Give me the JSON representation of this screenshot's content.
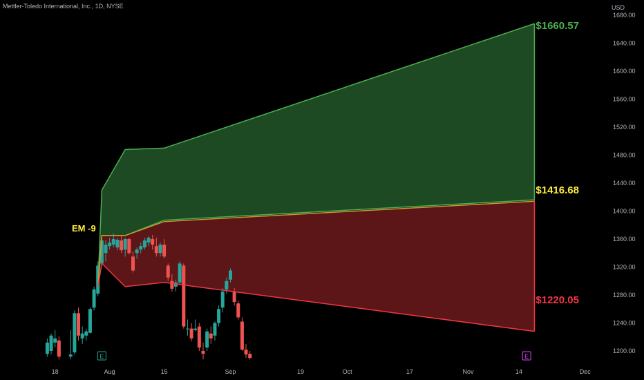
{
  "header": {
    "title": "Mettler-Toledo International, Inc., 1D, NYSE"
  },
  "axis": {
    "currency": "USD"
  },
  "chart_data": {
    "type": "candlestick",
    "title": "Mettler-Toledo International, Inc., 1D, NYSE",
    "ylabel": "USD",
    "ylim": [
      1188,
      1686
    ],
    "y_ticks": [
      "1200.00",
      "1240.00",
      "1280.00",
      "1320.00",
      "1360.00",
      "1400.00",
      "1440.00",
      "1480.00",
      "1520.00",
      "1560.00",
      "1600.00",
      "1640.00",
      "1680.00"
    ],
    "x_ticks": [
      {
        "label": "18",
        "day": -13
      },
      {
        "label": "Aug",
        "day": 1
      },
      {
        "label": "15",
        "day": 15
      },
      {
        "label": "Sep",
        "day": 32
      },
      {
        "label": "19",
        "day": 50
      },
      {
        "label": "Oct",
        "day": 62
      },
      {
        "label": "17",
        "day": 78
      },
      {
        "label": "Nov",
        "day": 93
      },
      {
        "label": "14",
        "day": 106
      },
      {
        "label": "Dec",
        "day": 123
      }
    ],
    "upper_band": [
      [
        -2,
        1292
      ],
      [
        -1,
        1430
      ],
      [
        5,
        1488
      ],
      [
        15,
        1490
      ],
      [
        110,
        1668
      ]
    ],
    "mid_upper": [
      [
        -2,
        1292
      ],
      [
        -1,
        1365
      ],
      [
        5,
        1365
      ],
      [
        15,
        1387
      ],
      [
        110,
        1416
      ]
    ],
    "mid_lower": [
      [
        -2,
        1292
      ],
      [
        -1,
        1365
      ],
      [
        5,
        1365
      ],
      [
        15,
        1385
      ],
      [
        110,
        1414
      ]
    ],
    "lower_band": [
      [
        -2,
        1292
      ],
      [
        -1,
        1325
      ],
      [
        5,
        1292
      ],
      [
        15,
        1298
      ],
      [
        110,
        1228
      ]
    ],
    "band_colors": {
      "upper_fill": "#1e4a23",
      "upper_line": "#4caf50",
      "lower_fill": "#5c1618",
      "lower_line": "#f23645",
      "mid_line": "#f5c842"
    },
    "candle_colors": {
      "up": "#26a69a",
      "down": "#ef5350"
    },
    "candles": [
      {
        "d": -15,
        "o": 1196,
        "h": 1218,
        "l": 1192,
        "c": 1212
      },
      {
        "d": -14,
        "o": 1200,
        "h": 1225,
        "l": 1195,
        "c": 1222
      },
      {
        "d": -13,
        "o": 1212,
        "h": 1230,
        "l": 1205,
        "c": 1218
      },
      {
        "d": -12,
        "o": 1215,
        "h": 1221,
        "l": 1188,
        "c": 1192
      },
      {
        "d": -9,
        "o": 1192,
        "h": 1230,
        "l": 1188,
        "c": 1195
      },
      {
        "d": -8,
        "o": 1198,
        "h": 1258,
        "l": 1195,
        "c": 1254
      },
      {
        "d": -7,
        "o": 1254,
        "h": 1262,
        "l": 1215,
        "c": 1222
      },
      {
        "d": -6,
        "o": 1218,
        "h": 1235,
        "l": 1210,
        "c": 1225
      },
      {
        "d": -5,
        "o": 1222,
        "h": 1232,
        "l": 1215,
        "c": 1228
      },
      {
        "d": -4,
        "o": 1226,
        "h": 1262,
        "l": 1225,
        "c": 1260
      },
      {
        "d": -3,
        "o": 1262,
        "h": 1292,
        "l": 1258,
        "c": 1288
      },
      {
        "d": -2,
        "o": 1282,
        "h": 1328,
        "l": 1278,
        "c": 1322
      },
      {
        "d": -1,
        "o": 1325,
        "h": 1362,
        "l": 1322,
        "c": 1358
      },
      {
        "d": 0,
        "o": 1340,
        "h": 1358,
        "l": 1328,
        "c": 1352
      },
      {
        "d": 1,
        "o": 1350,
        "h": 1362,
        "l": 1345,
        "c": 1355
      },
      {
        "d": 2,
        "o": 1352,
        "h": 1368,
        "l": 1348,
        "c": 1360
      },
      {
        "d": 3,
        "o": 1348,
        "h": 1362,
        "l": 1344,
        "c": 1359
      },
      {
        "d": 4,
        "o": 1358,
        "h": 1365,
        "l": 1340,
        "c": 1344
      },
      {
        "d": 5,
        "o": 1345,
        "h": 1362,
        "l": 1335,
        "c": 1360
      },
      {
        "d": 6,
        "o": 1360,
        "h": 1362,
        "l": 1338,
        "c": 1340
      },
      {
        "d": 7,
        "o": 1335,
        "h": 1342,
        "l": 1312,
        "c": 1315
      },
      {
        "d": 8,
        "o": 1340,
        "h": 1348,
        "l": 1332,
        "c": 1345
      },
      {
        "d": 9,
        "o": 1345,
        "h": 1355,
        "l": 1340,
        "c": 1350
      },
      {
        "d": 10,
        "o": 1348,
        "h": 1362,
        "l": 1345,
        "c": 1358
      },
      {
        "d": 11,
        "o": 1355,
        "h": 1364,
        "l": 1350,
        "c": 1362
      },
      {
        "d": 12,
        "o": 1360,
        "h": 1366,
        "l": 1345,
        "c": 1352
      },
      {
        "d": 13,
        "o": 1350,
        "h": 1362,
        "l": 1335,
        "c": 1340
      },
      {
        "d": 14,
        "o": 1340,
        "h": 1355,
        "l": 1335,
        "c": 1352
      },
      {
        "d": 15,
        "o": 1352,
        "h": 1360,
        "l": 1332,
        "c": 1335
      },
      {
        "d": 16,
        "o": 1322,
        "h": 1325,
        "l": 1300,
        "c": 1305
      },
      {
        "d": 17,
        "o": 1300,
        "h": 1310,
        "l": 1285,
        "c": 1289
      },
      {
        "d": 18,
        "o": 1292,
        "h": 1302,
        "l": 1285,
        "c": 1298
      },
      {
        "d": 19,
        "o": 1298,
        "h": 1328,
        "l": 1295,
        "c": 1325
      },
      {
        "d": 20,
        "o": 1322,
        "h": 1325,
        "l": 1232,
        "c": 1235
      },
      {
        "d": 21,
        "o": 1232,
        "h": 1245,
        "l": 1222,
        "c": 1232
      },
      {
        "d": 22,
        "o": 1232,
        "h": 1240,
        "l": 1214,
        "c": 1218
      },
      {
        "d": 23,
        "o": 1230,
        "h": 1245,
        "l": 1228,
        "c": 1232
      },
      {
        "d": 24,
        "o": 1235,
        "h": 1240,
        "l": 1200,
        "c": 1205
      },
      {
        "d": 25,
        "o": 1200,
        "h": 1212,
        "l": 1188,
        "c": 1196
      },
      {
        "d": 26,
        "o": 1205,
        "h": 1232,
        "l": 1200,
        "c": 1228
      },
      {
        "d": 27,
        "o": 1225,
        "h": 1235,
        "l": 1210,
        "c": 1218
      },
      {
        "d": 28,
        "o": 1222,
        "h": 1242,
        "l": 1215,
        "c": 1240
      },
      {
        "d": 29,
        "o": 1240,
        "h": 1265,
        "l": 1235,
        "c": 1260
      },
      {
        "d": 30,
        "o": 1262,
        "h": 1290,
        "l": 1255,
        "c": 1285
      },
      {
        "d": 31,
        "o": 1288,
        "h": 1305,
        "l": 1282,
        "c": 1300
      },
      {
        "d": 32,
        "o": 1302,
        "h": 1318,
        "l": 1298,
        "c": 1315
      },
      {
        "d": 33,
        "o": 1285,
        "h": 1290,
        "l": 1265,
        "c": 1270
      },
      {
        "d": 34,
        "o": 1268,
        "h": 1272,
        "l": 1245,
        "c": 1248
      },
      {
        "d": 35,
        "o": 1242,
        "h": 1248,
        "l": 1200,
        "c": 1202
      },
      {
        "d": 36,
        "o": 1202,
        "h": 1210,
        "l": 1190,
        "c": 1195
      },
      {
        "d": 37,
        "o": 1196,
        "h": 1200,
        "l": 1188,
        "c": 1190
      }
    ],
    "annotations": [
      {
        "text": "EM -9",
        "day": -5,
        "y": 1376,
        "color": "#ffeb3b"
      },
      {
        "text": "$1660.57",
        "day": 110,
        "y": 1665,
        "color": "#4caf50"
      },
      {
        "text": "$1416.68",
        "day": 110,
        "y": 1430,
        "color": "#ffeb3b"
      },
      {
        "text": "$1220.05",
        "day": 110,
        "y": 1273,
        "color": "#f23645"
      }
    ],
    "earnings_markers": [
      {
        "text": "E",
        "day": -1,
        "color": "#26a69a"
      },
      {
        "text": "E",
        "day": 108,
        "color": "#e040fb"
      }
    ]
  }
}
